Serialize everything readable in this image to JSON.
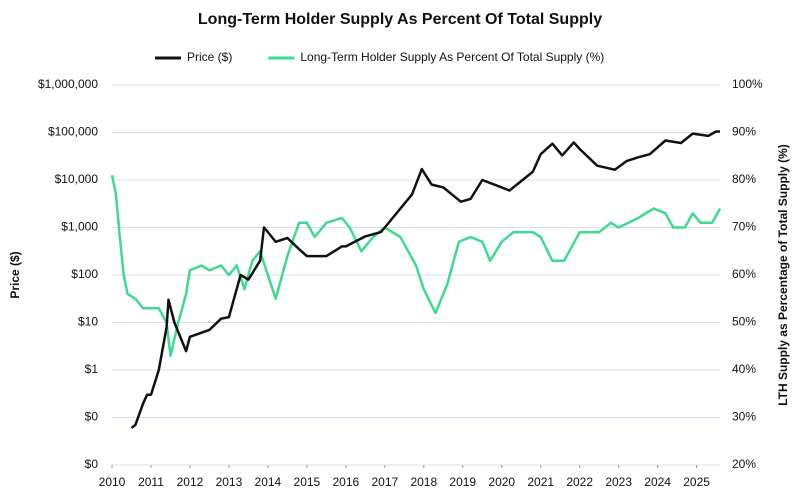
{
  "chart_data": {
    "type": "line",
    "title": "Long-Term Holder Supply As Percent Of Total Supply",
    "ylabel": "Price ($)",
    "y2label": "LTH Supply as Percentage of Total Supply (%)",
    "xlim": [
      2010,
      2025.6
    ],
    "xticks": [
      2010,
      2011,
      2012,
      2013,
      2014,
      2015,
      2016,
      2017,
      2018,
      2019,
      2020,
      2021,
      2022,
      2023,
      2024,
      2025
    ],
    "ylim": [
      0.01,
      1000000
    ],
    "yscale": "log",
    "yticks": [
      {
        "value": 0.01,
        "label": "$0"
      },
      {
        "value": 0.1,
        "label": "$0"
      },
      {
        "value": 1,
        "label": "$1"
      },
      {
        "value": 10,
        "label": "$10"
      },
      {
        "value": 100,
        "label": "$100"
      },
      {
        "value": 1000,
        "label": "$1,000"
      },
      {
        "value": 10000,
        "label": "$10,000"
      },
      {
        "value": 100000,
        "label": "$100,000"
      },
      {
        "value": 1000000,
        "label": "$1,000,000"
      }
    ],
    "y2lim": [
      20,
      100
    ],
    "y2ticks": [
      {
        "value": 20,
        "label": "20%"
      },
      {
        "value": 30,
        "label": "30%"
      },
      {
        "value": 40,
        "label": "40%"
      },
      {
        "value": 50,
        "label": "50%"
      },
      {
        "value": 60,
        "label": "60%"
      },
      {
        "value": 70,
        "label": "70%"
      },
      {
        "value": 80,
        "label": "80%"
      },
      {
        "value": 90,
        "label": "90%"
      },
      {
        "value": 100,
        "label": "100%"
      }
    ],
    "grid": true,
    "legend": "top",
    "series": [
      {
        "name": "Price ($)",
        "color": "#111111",
        "axis": "y",
        "x": [
          2010.5,
          2010.6,
          2010.8,
          2010.9,
          2011.0,
          2011.2,
          2011.4,
          2011.45,
          2011.6,
          2011.9,
          2012.0,
          2012.5,
          2012.8,
          2013.0,
          2013.3,
          2013.5,
          2013.8,
          2013.9,
          2014.0,
          2014.2,
          2014.5,
          2014.8,
          2015.0,
          2015.5,
          2015.9,
          2016.0,
          2016.5,
          2016.9,
          2017.0,
          2017.4,
          2017.7,
          2017.95,
          2018.2,
          2018.5,
          2018.95,
          2019.2,
          2019.5,
          2019.9,
          2020.2,
          2020.5,
          2020.8,
          2021.0,
          2021.3,
          2021.55,
          2021.85,
          2022.0,
          2022.45,
          2022.9,
          2023.2,
          2023.5,
          2023.8,
          2024.2,
          2024.6,
          2024.9,
          2025.3,
          2025.5,
          2025.6
        ],
        "values": [
          0.06,
          0.07,
          0.2,
          0.3,
          0.3,
          1,
          8,
          30,
          10,
          2.5,
          5,
          7,
          12,
          13,
          100,
          80,
          200,
          1000,
          800,
          500,
          600,
          350,
          250,
          250,
          400,
          400,
          650,
          800,
          1000,
          2500,
          5000,
          17000,
          8000,
          7000,
          3500,
          4000,
          10000,
          7500,
          6000,
          9500,
          15000,
          35000,
          58000,
          33000,
          62000,
          45000,
          20000,
          16500,
          25000,
          30000,
          35000,
          68000,
          60000,
          95000,
          85000,
          105000,
          105000
        ]
      },
      {
        "name": "Long-Term Holder Supply As Percent Of Total Supply (%)",
        "color": "#3fd992",
        "axis": "y2",
        "x": [
          2010.0,
          2010.1,
          2010.2,
          2010.3,
          2010.4,
          2010.6,
          2010.8,
          2011.0,
          2011.2,
          2011.4,
          2011.5,
          2011.7,
          2011.9,
          2012.0,
          2012.3,
          2012.5,
          2012.8,
          2013.0,
          2013.2,
          2013.4,
          2013.6,
          2013.8,
          2014.0,
          2014.2,
          2014.5,
          2014.8,
          2015.0,
          2015.2,
          2015.5,
          2015.9,
          2016.1,
          2016.4,
          2016.7,
          2017.0,
          2017.4,
          2017.8,
          2018.0,
          2018.3,
          2018.6,
          2018.9,
          2019.2,
          2019.5,
          2019.7,
          2020.0,
          2020.3,
          2020.8,
          2021.0,
          2021.3,
          2021.6,
          2022.0,
          2022.5,
          2022.8,
          2023.0,
          2023.5,
          2023.9,
          2024.2,
          2024.4,
          2024.7,
          2024.9,
          2025.1,
          2025.4,
          2025.6
        ],
        "values": [
          81,
          77,
          68,
          60,
          56,
          55,
          53,
          53,
          53,
          50,
          43,
          50,
          56,
          61,
          62,
          61,
          62,
          60,
          62,
          57,
          63,
          65,
          60,
          55,
          64,
          71,
          71,
          68,
          71,
          72,
          70,
          65,
          68,
          70,
          68,
          62,
          57,
          52,
          58,
          67,
          68,
          67,
          63,
          67,
          69,
          69,
          68,
          63,
          63,
          69,
          69,
          71,
          70,
          72,
          74,
          73,
          70,
          70,
          73,
          71,
          71,
          74
        ]
      }
    ]
  }
}
